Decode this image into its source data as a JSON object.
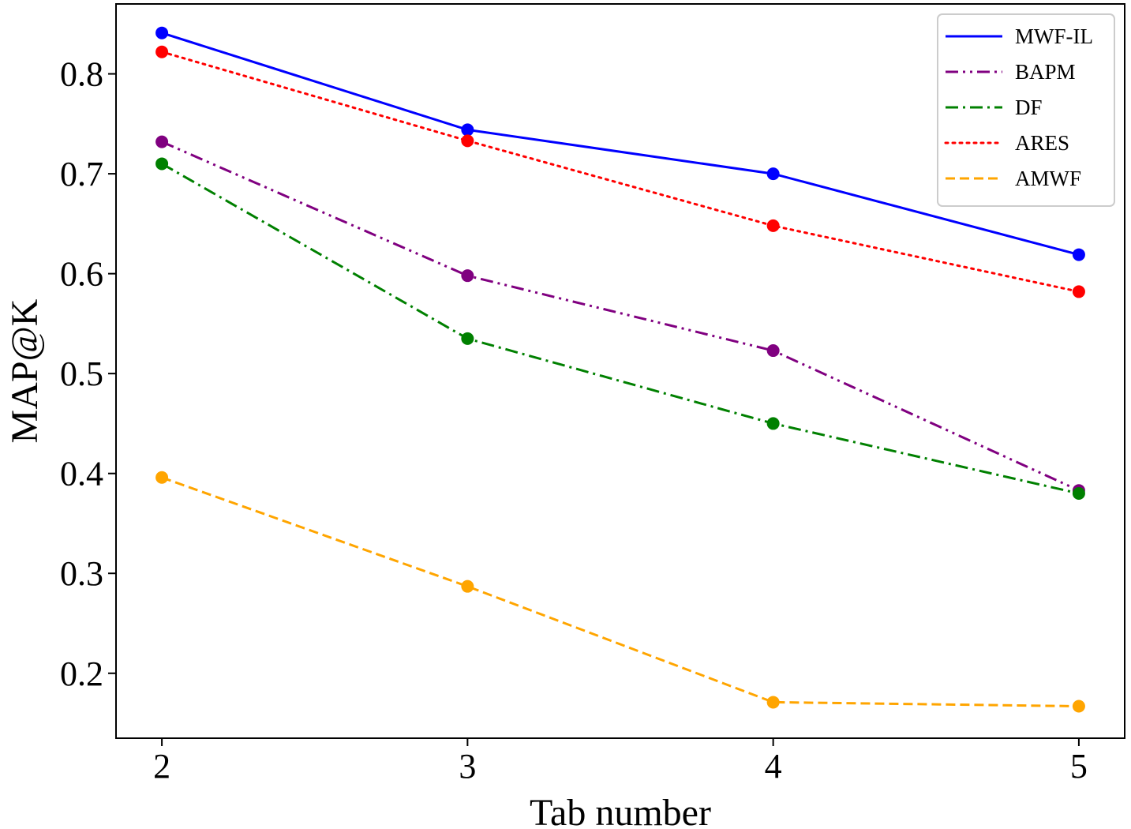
{
  "chart_data": {
    "type": "line",
    "title": "",
    "xlabel": "Tab number",
    "ylabel": "MAP@K",
    "x": [
      2,
      3,
      4,
      5
    ],
    "x_tick_labels": [
      "2",
      "3",
      "4",
      "5"
    ],
    "y_ticks": [
      0.2,
      0.3,
      0.4,
      0.5,
      0.6,
      0.7,
      0.8
    ],
    "y_tick_labels": [
      "0.2",
      "0.3",
      "0.4",
      "0.5",
      "0.6",
      "0.7",
      "0.8"
    ],
    "xlim": [
      1.85,
      5.15
    ],
    "ylim": [
      0.135,
      0.87
    ],
    "grid": false,
    "legend_position": "top-right",
    "series": [
      {
        "name": "MWF-IL",
        "color": "#0000ff",
        "linestyle": "solid",
        "values": [
          0.841,
          0.744,
          0.7,
          0.619
        ]
      },
      {
        "name": "BAPM",
        "color": "#800080",
        "linestyle": "dashdotdot",
        "values": [
          0.732,
          0.598,
          0.523,
          0.383
        ]
      },
      {
        "name": "DF",
        "color": "#008000",
        "linestyle": "dashdot",
        "values": [
          0.71,
          0.535,
          0.45,
          0.38
        ]
      },
      {
        "name": "ARES",
        "color": "#ff0000",
        "linestyle": "dotted",
        "values": [
          0.822,
          0.733,
          0.648,
          0.582
        ]
      },
      {
        "name": "AMWF",
        "color": "#ffa500",
        "linestyle": "dashed",
        "values": [
          0.396,
          0.287,
          0.171,
          0.167
        ]
      }
    ]
  }
}
